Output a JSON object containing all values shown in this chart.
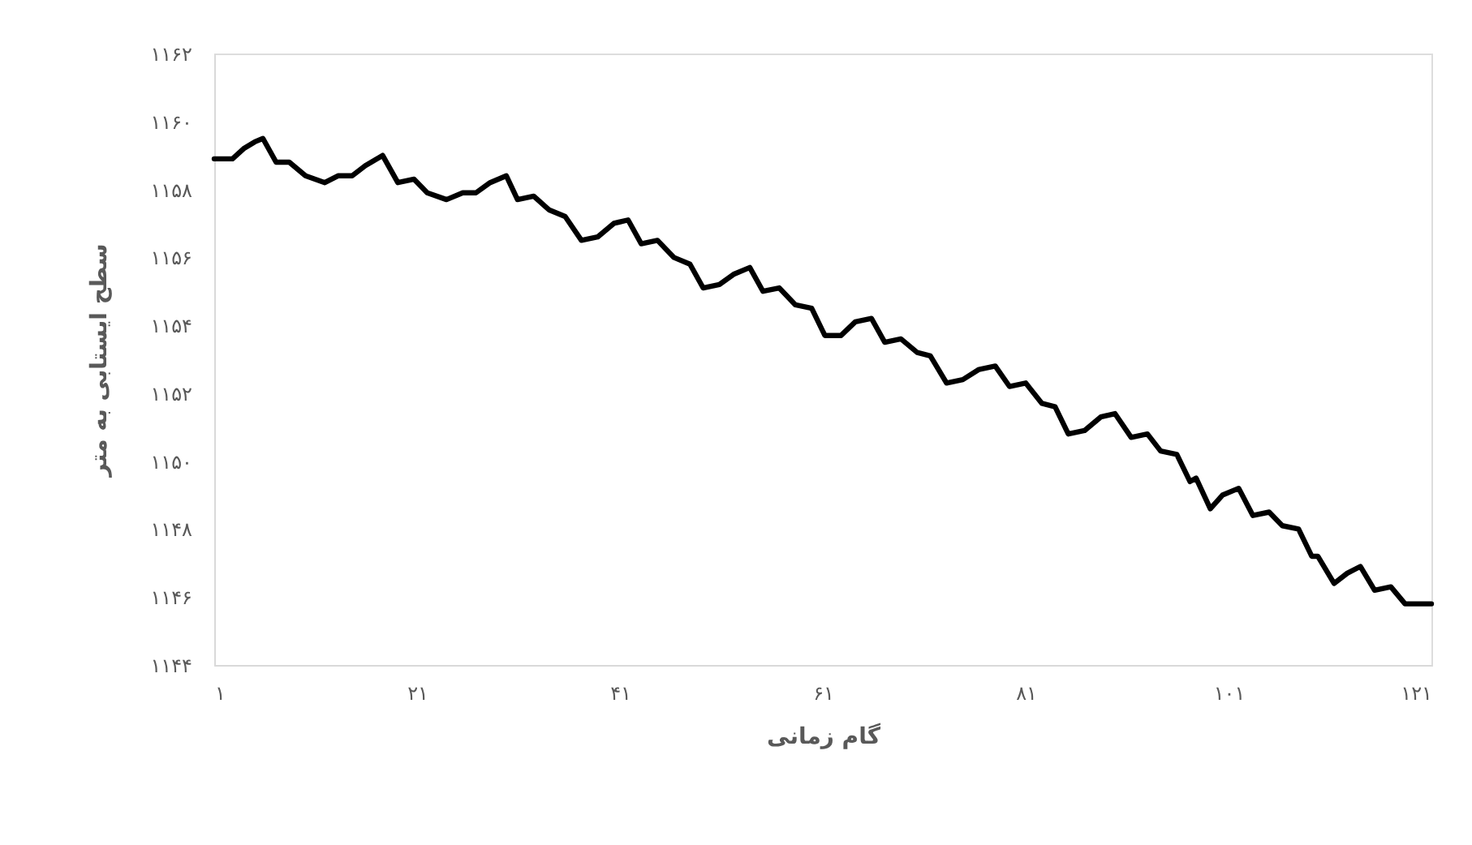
{
  "chart_data": {
    "type": "line",
    "xlabel": "گام زمانی",
    "ylabel": "سطح ایستابی به متر",
    "x": [
      1,
      2.8,
      3.9,
      5.0,
      5.8,
      7.1,
      8.4,
      10.0,
      11.9,
      13.2,
      14.6,
      15.9,
      17.6,
      19.1,
      20.7,
      22.0,
      23.9,
      25.5,
      26.8,
      28.2,
      29.8,
      30.9,
      32.5,
      34.0,
      35.6,
      37.2,
      38.8,
      40.4,
      41.8,
      43.1,
      44.7,
      46.3,
      47.9,
      49.2,
      50.8,
      52.2,
      53.8,
      55.1,
      56.7,
      58.3,
      59.9,
      61.2,
      62.8,
      64.2,
      65.8,
      67.1,
      68.7,
      70.3,
      71.6,
      73.2,
      74.8,
      76.4,
      78.0,
      79.4,
      81.0,
      82.6,
      83.9,
      85.2,
      86.8,
      88.4,
      89.8,
      91.4,
      93.0,
      94.3,
      95.9,
      97.2,
      97.8,
      99.2,
      100.4,
      102.0,
      103.4,
      105.0,
      106.3,
      107.9,
      109.2,
      109.8,
      111.4,
      112.7,
      114.0,
      115.4,
      117.0,
      118.4,
      119.6,
      121
    ],
    "series": [
      {
        "color": "#000000",
        "values": [
          1158.9,
          1158.9,
          1159.2,
          1159.4,
          1159.5,
          1158.8,
          1158.8,
          1158.4,
          1158.2,
          1158.4,
          1158.4,
          1158.7,
          1159.0,
          1158.2,
          1158.3,
          1157.9,
          1157.7,
          1157.9,
          1157.9,
          1158.2,
          1158.4,
          1157.7,
          1157.8,
          1157.4,
          1157.2,
          1156.5,
          1156.6,
          1157.0,
          1157.1,
          1156.4,
          1156.5,
          1156.0,
          1155.8,
          1155.1,
          1155.2,
          1155.5,
          1155.7,
          1155.0,
          1155.1,
          1154.6,
          1154.5,
          1153.7,
          1153.7,
          1154.1,
          1154.2,
          1153.5,
          1153.6,
          1153.2,
          1153.1,
          1152.3,
          1152.4,
          1152.7,
          1152.8,
          1152.2,
          1152.3,
          1151.7,
          1151.6,
          1150.8,
          1150.9,
          1151.3,
          1151.4,
          1150.7,
          1150.8,
          1150.3,
          1150.2,
          1149.4,
          1149.5,
          1148.6,
          1149.0,
          1149.2,
          1148.4,
          1148.5,
          1148.1,
          1148.0,
          1147.2,
          1147.2,
          1146.4,
          1146.7,
          1146.9,
          1146.2,
          1146.3,
          1145.8,
          1145.8,
          1145.8
        ]
      }
    ],
    "xlim": [
      1,
      121
    ],
    "xticks": [
      {
        "value": 1,
        "label": "۱"
      },
      {
        "value": 21,
        "label": "۲۱"
      },
      {
        "value": 41,
        "label": "۴۱"
      },
      {
        "value": 61,
        "label": "۶۱"
      },
      {
        "value": 81,
        "label": "۸۱"
      },
      {
        "value": 101,
        "label": "۱۰۱"
      },
      {
        "value": 121,
        "label": "۱۲۱"
      }
    ],
    "ylim": [
      1144,
      1162
    ],
    "yticks": [
      {
        "value": 1144,
        "label": "۱۱۴۴"
      },
      {
        "value": 1146,
        "label": "۱۱۴۶"
      },
      {
        "value": 1148,
        "label": "۱۱۴۸"
      },
      {
        "value": 1150,
        "label": "۱۱۵۰"
      },
      {
        "value": 1152,
        "label": "۱۱۵۲"
      },
      {
        "value": 1154,
        "label": "۱۱۵۴"
      },
      {
        "value": 1156,
        "label": "۱۱۵۶"
      },
      {
        "value": 1158,
        "label": "۱۱۵۸"
      },
      {
        "value": 1160,
        "label": "۱۱۶۰"
      },
      {
        "value": 1162,
        "label": "۱۱۶۲"
      }
    ],
    "line_style": "solid",
    "grid": false
  }
}
